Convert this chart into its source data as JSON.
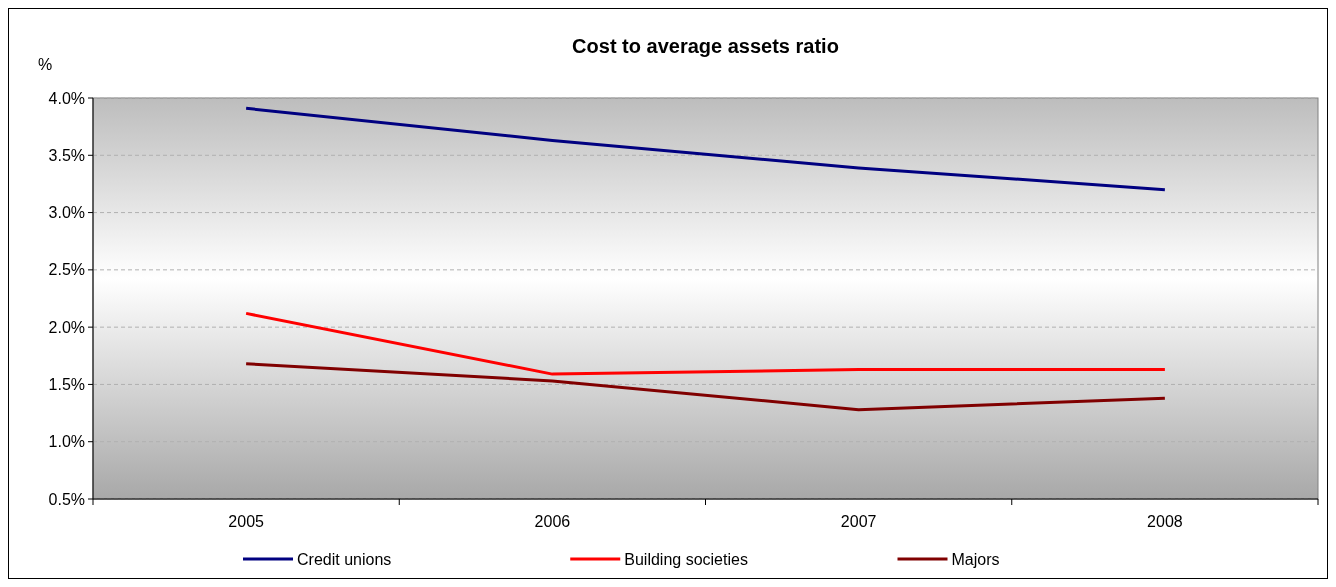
{
  "chart_data": {
    "type": "line",
    "title": "Cost to average assets ratio",
    "ylabel": "%",
    "categories": [
      "2005",
      "2006",
      "2007",
      "2008"
    ],
    "series": [
      {
        "name": "Credit unions",
        "color": "#000080",
        "values": [
          3.91,
          3.63,
          3.39,
          3.2
        ]
      },
      {
        "name": "Building societies",
        "color": "#ff0000",
        "values": [
          2.12,
          1.59,
          1.63,
          1.63
        ]
      },
      {
        "name": "Majors",
        "color": "#800000",
        "values": [
          1.68,
          1.53,
          1.28,
          1.38
        ]
      }
    ],
    "ylim": [
      0.5,
      4.0
    ],
    "yticks": [
      {
        "value": 0.5,
        "label": "0.5%"
      },
      {
        "value": 1.0,
        "label": "1.0%"
      },
      {
        "value": 1.5,
        "label": "1.5%"
      },
      {
        "value": 2.0,
        "label": "2.0%"
      },
      {
        "value": 2.5,
        "label": "2.5%"
      },
      {
        "value": 3.0,
        "label": "3.0%"
      },
      {
        "value": 3.5,
        "label": "3.5%"
      },
      {
        "value": 4.0,
        "label": "4.0%"
      }
    ],
    "grid": "y",
    "legend": "bottom",
    "marker": "none",
    "line_style": "solid"
  }
}
